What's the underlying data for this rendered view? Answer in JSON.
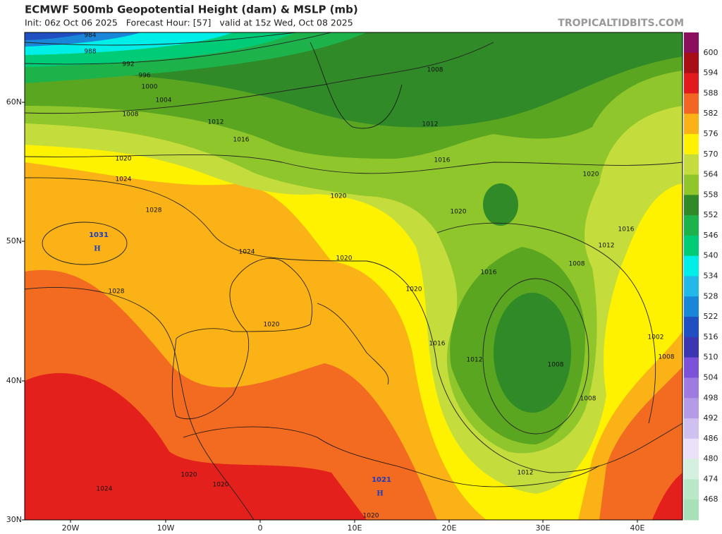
{
  "header": {
    "title": "ECMWF 500mb Geopotential Height (dam) & MSLP (mb)",
    "subtitle": "Init: 06z Oct 06 2025   Forecast Hour: [57]   valid at 15z Wed, Oct 08 2025",
    "watermark": "TROPICALTIDBITS.COM"
  },
  "axes": {
    "lat_labels": [
      "60N",
      "50N",
      "40N",
      "30N"
    ],
    "lon_labels": [
      "20W",
      "10W",
      "0",
      "10E",
      "20E",
      "30E",
      "40E"
    ]
  },
  "colorbar": {
    "levels": [
      600,
      594,
      588,
      582,
      576,
      570,
      564,
      558,
      552,
      546,
      540,
      534,
      528,
      522,
      516,
      510,
      504,
      498,
      492,
      486,
      480,
      474,
      468
    ],
    "colors": [
      "#8a0f5c",
      "#a50f15",
      "#e31a1c",
      "#f26522",
      "#fbb217",
      "#fef200",
      "#c5dd3c",
      "#8fc62b",
      "#2f8a27",
      "#1db34a",
      "#00cc77",
      "#00eee8",
      "#22b8e8",
      "#1a86d8",
      "#1f4fc0",
      "#3c36b0",
      "#7b52d8",
      "#9d7be0",
      "#b59ae8",
      "#d0c0f0",
      "#ece2f7",
      "#d6f0e0",
      "#b9e8c8",
      "#a8e0b8"
    ]
  },
  "isobar_labels": [
    984,
    988,
    992,
    996,
    1000,
    1004,
    1008,
    1012,
    1016,
    1020,
    1024,
    1028,
    1024,
    1020,
    1020,
    1020,
    1020,
    1016,
    1012,
    1008,
    1020,
    1016,
    1012,
    1008,
    1016,
    1020,
    1028,
    1016,
    1012,
    1008,
    1008,
    1012,
    1008,
    1002,
    1024,
    1020,
    1020,
    1020
  ],
  "highs": [
    {
      "pressure": 1031,
      "symbol": "H"
    },
    {
      "pressure": 1021,
      "symbol": "H"
    }
  ]
}
